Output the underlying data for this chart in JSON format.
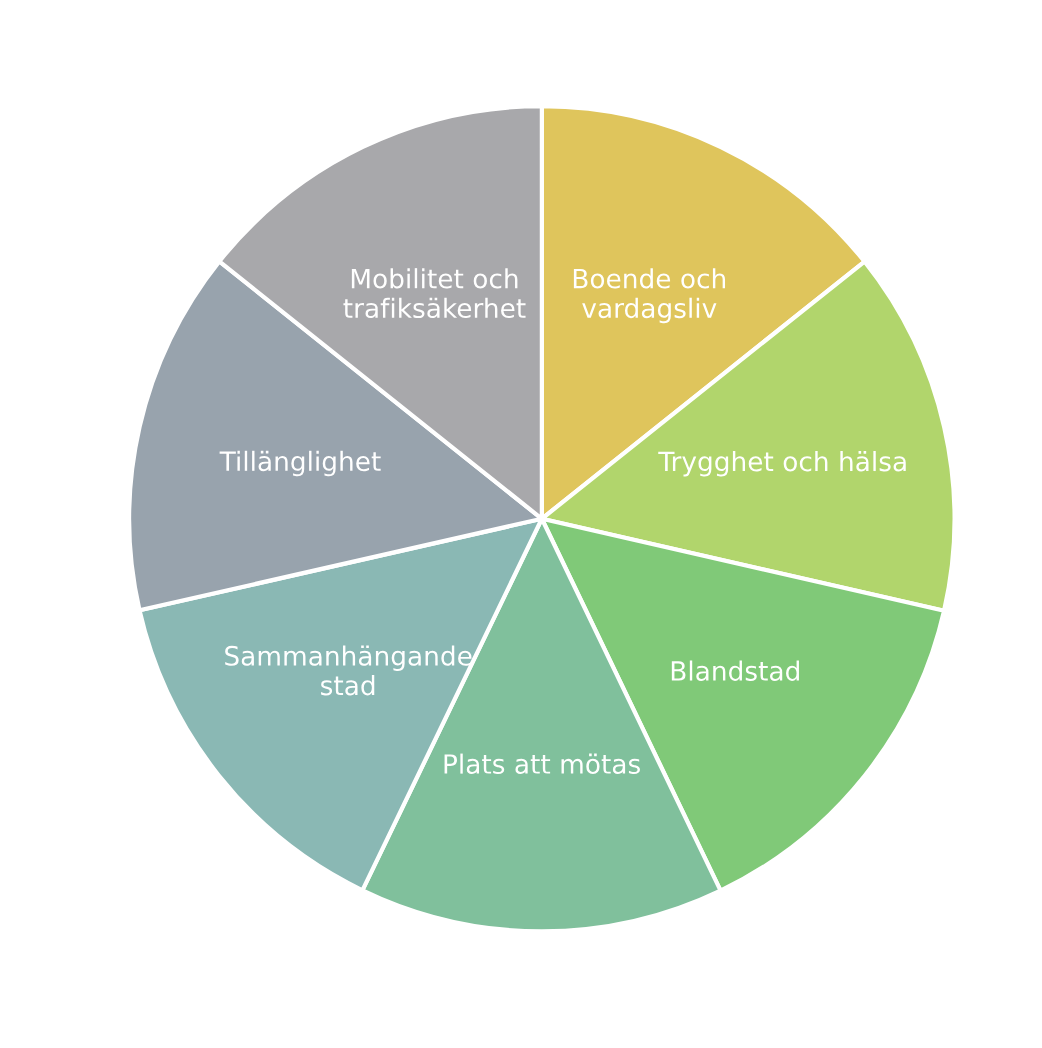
{
  "chart_data": {
    "type": "pie",
    "categories": [
      "Boende och\nvardagsliv",
      "Trygghet och hälsa",
      "Blandstad",
      "Plats att mötas",
      "Sammanhängande\nstad",
      "Tillänglighet",
      "Mobilitet och\ntrafiksäkerhet"
    ],
    "values": [
      14.29,
      14.29,
      14.29,
      14.29,
      14.28,
      14.28,
      14.28
    ],
    "colors": [
      "#dfc55c",
      "#b1d56c",
      "#80c978",
      "#80c09c",
      "#8ab8b4",
      "#98a3ad",
      "#a8a8ab"
    ]
  }
}
